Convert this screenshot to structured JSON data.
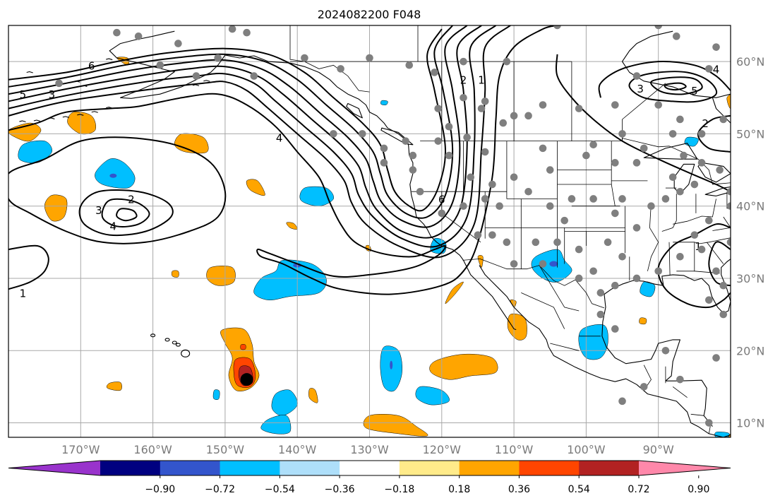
{
  "title": "2024082200 F048",
  "map": {
    "lon_range": [
      -180,
      -80
    ],
    "lat_range": [
      8,
      65
    ],
    "lon_ticks": [
      {
        "lon": -170,
        "label": "170°W"
      },
      {
        "lon": -160,
        "label": "160°W"
      },
      {
        "lon": -150,
        "label": "150°W"
      },
      {
        "lon": -140,
        "label": "140°W"
      },
      {
        "lon": -130,
        "label": "130°W"
      },
      {
        "lon": -120,
        "label": "120°W"
      },
      {
        "lon": -110,
        "label": "110°W"
      },
      {
        "lon": -100,
        "label": "100°W"
      },
      {
        "lon": -90,
        "label": "90°W"
      }
    ],
    "lat_ticks": [
      {
        "lat": 60,
        "label": "60°N"
      },
      {
        "lat": 50,
        "label": "50°N"
      },
      {
        "lat": 40,
        "label": "40°N"
      },
      {
        "lat": 30,
        "label": "30°N"
      },
      {
        "lat": 20,
        "label": "20°N"
      },
      {
        "lat": 10,
        "label": "10°N"
      }
    ],
    "colors": {
      "ocean": "#ffffff",
      "grid": "#a8a8a8",
      "coast": "#000000",
      "station": "#7f7f7f",
      "storm_marker": "#000000"
    },
    "contour_labels": [
      {
        "text": "6",
        "lon": -168.5,
        "lat": 59.5
      },
      {
        "text": "5",
        "lon": -178,
        "lat": 55.5
      },
      {
        "text": "3",
        "lon": -174,
        "lat": 55.5
      },
      {
        "text": "4",
        "lon": -142.5,
        "lat": 49.5
      },
      {
        "text": "2",
        "lon": -163,
        "lat": 41.0
      },
      {
        "text": "3",
        "lon": -167.5,
        "lat": 39.5
      },
      {
        "text": "4",
        "lon": -165.5,
        "lat": 37.3
      },
      {
        "text": "1",
        "lon": -178,
        "lat": 28.0
      },
      {
        "text": "6",
        "lon": -120,
        "lat": 41.0
      },
      {
        "text": "2",
        "lon": -117,
        "lat": 57.5
      },
      {
        "text": "1",
        "lon": -114.5,
        "lat": 57.5
      },
      {
        "text": "3",
        "lon": -92.5,
        "lat": 56.3
      },
      {
        "text": "4",
        "lon": -82,
        "lat": 59.0
      },
      {
        "text": "5",
        "lon": -85,
        "lat": 56.0
      },
      {
        "text": "2",
        "lon": -83.5,
        "lat": 51.5
      },
      {
        "text": "1",
        "lon": -84.5,
        "lat": 34.5
      }
    ],
    "storm_center": {
      "lon": -147.0,
      "lat": 16.0
    },
    "stations": [
      [
        -165,
        64
      ],
      [
        -156.5,
        62.5
      ],
      [
        -149,
        64.5
      ],
      [
        -147,
        64
      ],
      [
        -159,
        59.5
      ],
      [
        -162,
        63.5
      ],
      [
        -173,
        57
      ],
      [
        -151,
        60.5
      ],
      [
        -146,
        58
      ],
      [
        -154,
        58
      ],
      [
        -139,
        60.5
      ],
      [
        -134,
        59
      ],
      [
        -130,
        60.5
      ],
      [
        -124.5,
        59.5
      ],
      [
        -121,
        58.5
      ],
      [
        -117,
        60
      ],
      [
        -111,
        60
      ],
      [
        -104,
        65
      ],
      [
        -90,
        65
      ],
      [
        -87.5,
        63.5
      ],
      [
        -82,
        62
      ],
      [
        -83,
        59
      ],
      [
        -93,
        58
      ],
      [
        -117,
        55
      ],
      [
        -114,
        54.5
      ],
      [
        -114.5,
        53.5
      ],
      [
        -106,
        54
      ],
      [
        -110,
        52.5
      ],
      [
        -108,
        52.5
      ],
      [
        -101,
        53.5
      ],
      [
        -96,
        54
      ],
      [
        -90,
        54
      ],
      [
        -120.5,
        53.5
      ],
      [
        -120.5,
        49
      ],
      [
        -116.5,
        49.5
      ],
      [
        -119,
        51
      ],
      [
        -111.5,
        51.5
      ],
      [
        -119,
        47
      ],
      [
        -114,
        47.5
      ],
      [
        -106,
        48
      ],
      [
        -108,
        42
      ],
      [
        -100,
        47
      ],
      [
        -96,
        46
      ],
      [
        -99,
        48.5
      ],
      [
        -93,
        46
      ],
      [
        -88,
        44
      ],
      [
        -85,
        43
      ],
      [
        -87,
        42
      ],
      [
        -89,
        41
      ],
      [
        -91,
        40
      ],
      [
        -95,
        41
      ],
      [
        -99,
        41
      ],
      [
        -102,
        41
      ],
      [
        -103,
        38
      ],
      [
        -96,
        39
      ],
      [
        -93,
        37
      ],
      [
        -97,
        35
      ],
      [
        -95,
        33
      ],
      [
        -99,
        31
      ],
      [
        -98,
        28
      ],
      [
        -96,
        29
      ],
      [
        -93,
        30
      ],
      [
        -90,
        31
      ],
      [
        -87,
        33
      ],
      [
        -84,
        34
      ],
      [
        -85,
        36
      ],
      [
        -83,
        38
      ],
      [
        -80,
        40
      ],
      [
        -79,
        37
      ],
      [
        -80,
        35
      ],
      [
        -82,
        31
      ],
      [
        -81,
        29
      ],
      [
        -81,
        25
      ],
      [
        -83,
        27
      ],
      [
        -80,
        42
      ],
      [
        -81.5,
        45
      ],
      [
        -84,
        46
      ],
      [
        -86.5,
        47
      ],
      [
        -84,
        50
      ],
      [
        -88,
        50
      ],
      [
        -92,
        48
      ],
      [
        -95,
        50
      ],
      [
        -81,
        52
      ],
      [
        -87,
        52
      ],
      [
        -101,
        34
      ],
      [
        -104,
        35
      ],
      [
        -106,
        32
      ],
      [
        -110,
        32
      ],
      [
        -111,
        35
      ],
      [
        -113,
        36
      ],
      [
        -115,
        36
      ],
      [
        -112,
        40
      ],
      [
        -114,
        41
      ],
      [
        -117,
        40
      ],
      [
        -116,
        44
      ],
      [
        -113,
        43
      ],
      [
        -110,
        44
      ],
      [
        -105,
        40
      ],
      [
        -105,
        45
      ],
      [
        -123,
        42
      ],
      [
        -120,
        39
      ],
      [
        -124,
        45
      ],
      [
        -128,
        48
      ],
      [
        -131,
        50
      ],
      [
        -135,
        50
      ],
      [
        -128,
        46
      ],
      [
        -124,
        47
      ],
      [
        -125,
        49
      ],
      [
        -107,
        35
      ],
      [
        -101,
        30
      ],
      [
        -98,
        25
      ],
      [
        -96,
        23
      ],
      [
        -82,
        19
      ],
      [
        -89,
        20
      ],
      [
        -92,
        15
      ],
      [
        -95,
        13
      ],
      [
        -87,
        16
      ],
      [
        -83,
        10
      ]
    ],
    "anomaly_colors": {
      "neg_strong": "#9933cc",
      "neg_090": "#000080",
      "neg_072": "#3355cc",
      "neg_054": "#00bfff",
      "neg_036": "#aedffa",
      "pos_018": "#ffeb8a",
      "pos_036": "#ffa500",
      "pos_054": "#ff4500",
      "pos_072": "#b22222",
      "pos_strong": "#ff88aa"
    }
  },
  "colorbar": {
    "colors": [
      "#9933cc",
      "#000080",
      "#3355cc",
      "#00bfff",
      "#aedffa",
      "#ffffff",
      "#ffeb8a",
      "#ffa500",
      "#ff4500",
      "#b22222",
      "#ff88aa"
    ],
    "ticks": [
      "−0.90",
      "−0.72",
      "−0.54",
      "−0.36",
      "−0.18",
      "0.18",
      "0.36",
      "0.54",
      "0.72",
      "0.90"
    ]
  }
}
